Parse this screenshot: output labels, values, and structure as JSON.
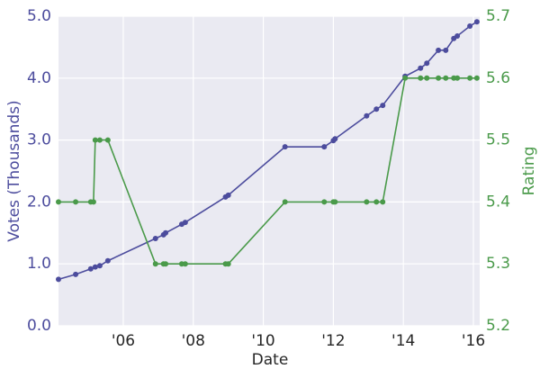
{
  "chart_data": {
    "type": "line",
    "xlabel": "Date",
    "ylabel": "Votes (Thousands)",
    "y2label": "Rating",
    "xlim": [
      2004.15,
      2016.18
    ],
    "xticks": [
      {
        "value": 2006,
        "label": "'06"
      },
      {
        "value": 2008,
        "label": "'08"
      },
      {
        "value": 2010,
        "label": "'10"
      },
      {
        "value": 2012,
        "label": "'12"
      },
      {
        "value": 2014,
        "label": "'14"
      },
      {
        "value": 2016,
        "label": "'16"
      }
    ],
    "ylim": [
      0,
      5
    ],
    "yticks": [
      {
        "value": 0,
        "label": "0.0"
      },
      {
        "value": 1,
        "label": "1.0"
      },
      {
        "value": 2,
        "label": "2.0"
      },
      {
        "value": 3,
        "label": "3.0"
      },
      {
        "value": 4,
        "label": "4.0"
      },
      {
        "value": 5,
        "label": "5.0"
      }
    ],
    "y2lim": [
      5.2,
      5.7
    ],
    "y2ticks": [
      5.2,
      5.3,
      5.4,
      5.5,
      5.6,
      5.7
    ],
    "grid": true,
    "series": [
      {
        "name": "Votes",
        "color": "#4c4c9d",
        "axis": "y",
        "x": [
          2004.15,
          2004.64,
          2005.07,
          2005.2,
          2005.33,
          2005.56,
          2006.92,
          2007.15,
          2007.21,
          2007.67,
          2007.77,
          2008.92,
          2009.0,
          2010.62,
          2011.74,
          2012.0,
          2012.05,
          2012.95,
          2013.23,
          2013.41,
          2014.05,
          2014.49,
          2014.67,
          2015.0,
          2015.21,
          2015.44,
          2015.54,
          2015.9,
          2016.1
        ],
        "values": [
          0.75,
          0.83,
          0.92,
          0.95,
          0.97,
          1.05,
          1.41,
          1.47,
          1.5,
          1.64,
          1.67,
          2.08,
          2.11,
          2.89,
          2.89,
          2.99,
          3.02,
          3.39,
          3.5,
          3.56,
          4.03,
          4.16,
          4.24,
          4.45,
          4.45,
          4.64,
          4.68,
          4.84,
          4.91
        ]
      },
      {
        "name": "Rating",
        "color": "#4a9a4a",
        "axis": "y2",
        "x": [
          2004.15,
          2004.64,
          2005.07,
          2005.15,
          2005.2,
          2005.33,
          2005.56,
          2006.92,
          2007.15,
          2007.21,
          2007.67,
          2007.77,
          2008.92,
          2009.0,
          2010.62,
          2011.74,
          2012.0,
          2012.05,
          2012.95,
          2013.23,
          2013.41,
          2014.05,
          2014.49,
          2014.67,
          2015.0,
          2015.21,
          2015.44,
          2015.54,
          2015.9,
          2016.1
        ],
        "values": [
          5.4,
          5.4,
          5.4,
          5.4,
          5.5,
          5.5,
          5.5,
          5.3,
          5.3,
          5.3,
          5.3,
          5.3,
          5.3,
          5.3,
          5.4,
          5.4,
          5.4,
          5.4,
          5.4,
          5.4,
          5.4,
          5.6,
          5.6,
          5.6,
          5.6,
          5.6,
          5.6,
          5.6,
          5.6,
          5.6
        ]
      }
    ]
  }
}
